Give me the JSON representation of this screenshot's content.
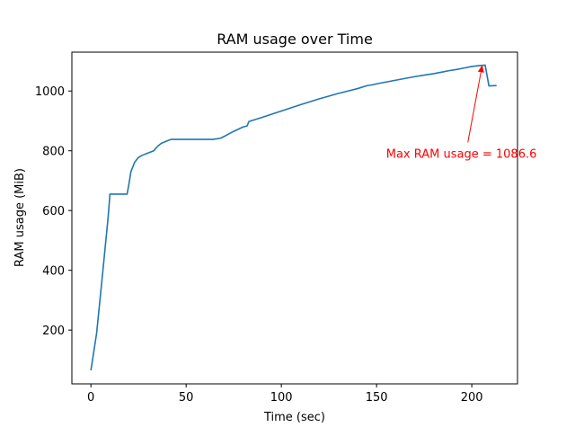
{
  "chart_data": {
    "type": "line",
    "title": "RAM usage over Time",
    "xlabel": "Time (sec)",
    "ylabel": "RAM usage (MiB)",
    "xlim": [
      -10,
      224
    ],
    "ylim": [
      20,
      1130
    ],
    "xticks": [
      0,
      50,
      100,
      150,
      200
    ],
    "yticks": [
      200,
      400,
      600,
      800,
      1000
    ],
    "grid": false,
    "colors": {
      "line": "#1f77b4",
      "annotation": "#ff0000"
    },
    "series": [
      {
        "x": [
          0,
          3,
          6,
          9,
          10,
          13,
          16,
          19,
          20,
          21,
          23,
          25,
          27,
          29,
          31,
          33,
          35,
          37,
          40,
          42,
          45,
          50,
          55,
          60,
          64,
          66,
          68,
          70,
          72,
          75,
          80,
          82,
          83,
          90,
          100,
          110,
          120,
          124,
          130,
          135,
          140,
          145,
          148,
          150,
          155,
          160,
          165,
          170,
          175,
          180,
          185,
          188,
          192,
          196,
          200,
          204,
          207,
          209,
          213
        ],
        "y": [
          65,
          190,
          380,
          575,
          655,
          655,
          655,
          655,
          690,
          730,
          762,
          778,
          785,
          790,
          795,
          800,
          815,
          825,
          833,
          838,
          838,
          838,
          838,
          838,
          838,
          840,
          842,
          848,
          855,
          865,
          880,
          883,
          898,
          912,
          933,
          954,
          974,
          981,
          992,
          1000,
          1008,
          1018,
          1021,
          1024,
          1030,
          1036,
          1042,
          1048,
          1053,
          1058,
          1064,
          1068,
          1072,
          1077,
          1082,
          1085,
          1086.6,
          1017,
          1018
        ]
      }
    ],
    "annotations": [
      {
        "text": "Max RAM usage = 1086.6",
        "xy": [
          205.5,
          1086.6
        ],
        "xytext": [
          155,
          792
        ]
      }
    ]
  }
}
